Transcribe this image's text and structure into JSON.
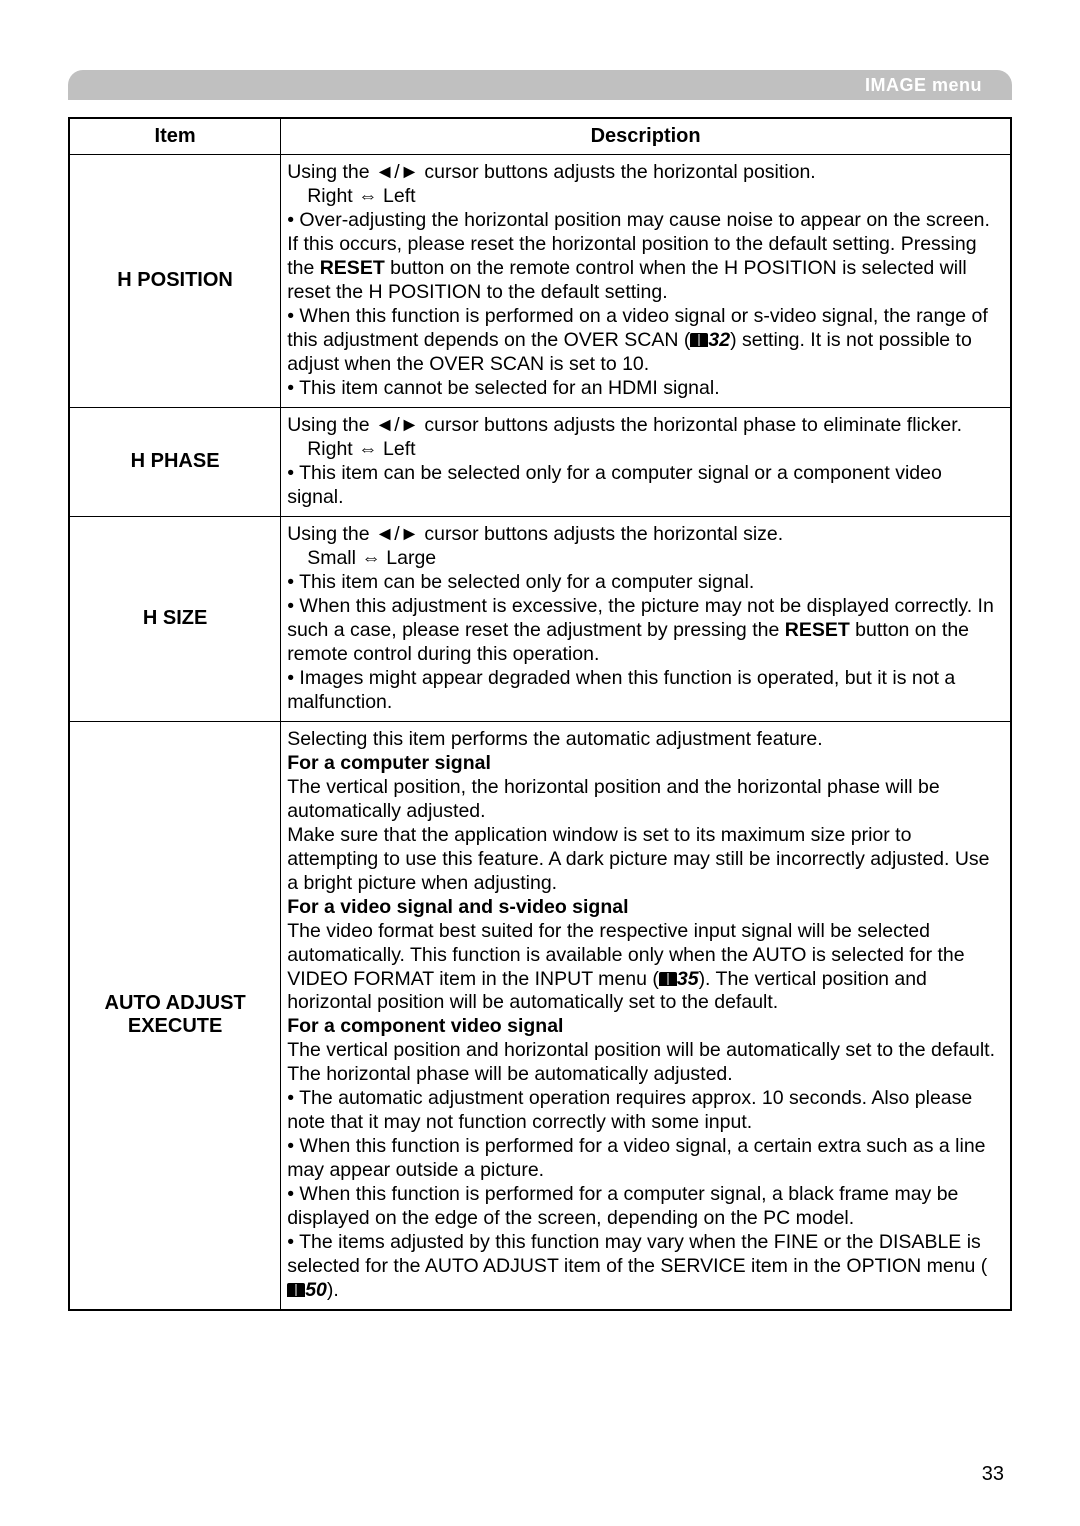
{
  "header": {
    "menu_label": "IMAGE menu"
  },
  "table": {
    "columns": {
      "item": "Item",
      "description": "Description"
    }
  },
  "rows": {
    "hposition": {
      "item": "H POSITION",
      "line1": "Using the ◄/► cursor buttons adjusts the horizontal position.",
      "line2": "Right ⇔ Left",
      "p1a": "• Over-adjusting the horizontal position may cause noise to appear on the screen. If this occurs, please reset the horizontal position to the default setting. Pressing the ",
      "p1b_bold": "RESET",
      "p1c": " button on the remote control when the H POSITION is selected will reset the H POSITION to the default setting.",
      "p2a": "• When this function is performed on a video signal or s-video signal, the range of this adjustment depends on the OVER SCAN (",
      "p2_ref": "32",
      "p2b": ") setting. It is not possible to adjust when the OVER SCAN is set to 10.",
      "p3": "• This item cannot be selected for an HDMI signal."
    },
    "hphase": {
      "item": "H PHASE",
      "line1": "Using the ◄/► cursor buttons adjusts the horizontal phase to eliminate flicker.",
      "line2": "Right ⇔ Left",
      "p1": "• This item can be selected only for a computer signal or a component video signal."
    },
    "hsize": {
      "item": "H SIZE",
      "line1": "Using the ◄/► cursor buttons adjusts the horizontal size.",
      "line2": "Small ⇔ Large",
      "p1": "• This item can be selected only for a computer signal.",
      "p2a": "• When this adjustment is excessive, the picture may not be displayed correctly. In such a case, please reset the adjustment by pressing the ",
      "p2b_bold": "RESET",
      "p2c": " button on the remote control during this operation.",
      "p3": "• Images might appear degraded when this function is operated, but it is not a malfunction."
    },
    "auto": {
      "item_line1": "AUTO ADJUST",
      "item_line2": "EXECUTE",
      "line1": "Selecting this item performs the automatic adjustment feature.",
      "sub1_bold": "For a computer signal",
      "sub1_p1": "The vertical position, the horizontal position and the horizontal phase will be automatically adjusted.",
      "sub1_p2": "Make sure that the application window is set to its maximum size prior to attempting to use this feature. A dark picture may still be incorrectly adjusted. Use a bright picture when adjusting.",
      "sub2_bold": "For a video signal and s-video signal",
      "sub2_p1a": "The video format best suited for the respective input signal will be selected automatically. This function is available only when the AUTO is selected for the VIDEO FORMAT item in the INPUT menu (",
      "sub2_ref": "35",
      "sub2_p1b": "). The vertical position and horizontal position will be automatically set to the default.",
      "sub3_bold": "For a component video signal",
      "sub3_p1": "The vertical position and horizontal position will be automatically set to the default. The horizontal phase will be automatically adjusted.",
      "b1": "• The automatic adjustment operation requires approx. 10 seconds. Also please note that it may not function correctly with some input.",
      "b2": "• When this function is performed for a video signal, a certain extra such as a line may appear outside a picture.",
      "b3": "• When this function is performed for a computer signal, a black frame may be displayed on the edge of the screen, depending on the PC model.",
      "b4a": "• The items adjusted by this function may vary when the FINE or the DISABLE is selected for the AUTO ADJUST item of the SERVICE item in the OPTION menu (",
      "b4_ref": "50",
      "b4b": ")."
    }
  },
  "page_number": "33",
  "colors": {
    "header_bg": "#c0c0c0",
    "header_text": "#ffffff",
    "border": "#000000",
    "text": "#000000",
    "background": "#ffffff"
  }
}
